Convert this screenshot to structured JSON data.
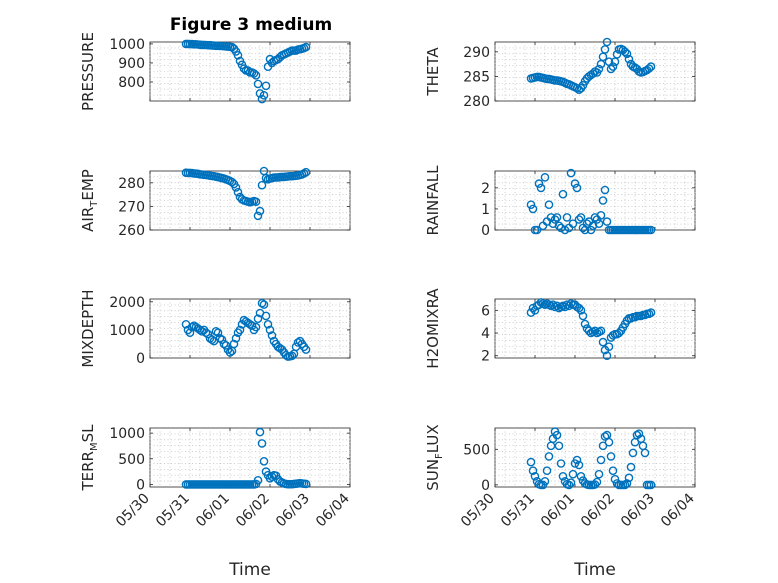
{
  "figure": {
    "title": "Figure 3 medium"
  },
  "colors": {
    "marker": "#0072BD",
    "axis": "#262626",
    "grid": "#b0b0b0"
  },
  "chart_data": [
    {
      "id": "pressure",
      "type": "scatter",
      "ylabel": "PRESSURE",
      "ylabel_parts": [
        "PRESSURE"
      ],
      "ylabel_sub": "",
      "xlim": [
        0,
        5
      ],
      "ylim": [
        700,
        1010
      ],
      "yticks": [
        800,
        900,
        1000
      ],
      "ytick_labels": [
        "800",
        "900",
        "1000"
      ],
      "x": [
        0.9,
        0.95,
        1.0,
        1.05,
        1.1,
        1.15,
        1.2,
        1.25,
        1.3,
        1.35,
        1.4,
        1.45,
        1.5,
        1.55,
        1.6,
        1.65,
        1.7,
        1.75,
        1.8,
        1.85,
        1.9,
        1.95,
        2.0,
        2.05,
        2.1,
        2.15,
        2.2,
        2.25,
        2.3,
        2.35,
        2.4,
        2.45,
        2.5,
        2.55,
        2.6,
        2.65,
        2.7,
        2.75,
        2.8,
        2.85,
        2.9,
        2.95,
        3.0,
        3.05,
        3.1,
        3.15,
        3.2,
        3.25,
        3.3,
        3.35,
        3.4,
        3.45,
        3.5,
        3.55,
        3.6,
        3.65,
        3.7,
        3.75,
        3.8,
        3.85,
        3.9
      ],
      "y": [
        1000,
        1000,
        999,
        999,
        998,
        998,
        997,
        996,
        995,
        995,
        994,
        993,
        993,
        992,
        991,
        990,
        990,
        989,
        989,
        988,
        987,
        986,
        985,
        983,
        975,
        960,
        940,
        910,
        890,
        870,
        860,
        860,
        850,
        850,
        845,
        835,
        790,
        740,
        710,
        730,
        780,
        880,
        920,
        900,
        910,
        915,
        920,
        930,
        940,
        945,
        950,
        955,
        960,
        965,
        965,
        965,
        970,
        972,
        975,
        978,
        983
      ]
    },
    {
      "id": "theta",
      "type": "scatter",
      "ylabel": "THETA",
      "ylabel_parts": [
        "THETA"
      ],
      "ylabel_sub": "",
      "xlim": [
        0,
        5
      ],
      "ylim": [
        280,
        292
      ],
      "yticks": [
        280,
        285,
        290
      ],
      "ytick_labels": [
        "280",
        "285",
        "290"
      ],
      "x": [
        0.9,
        0.95,
        1.0,
        1.05,
        1.1,
        1.15,
        1.2,
        1.25,
        1.3,
        1.35,
        1.4,
        1.45,
        1.5,
        1.55,
        1.6,
        1.65,
        1.7,
        1.75,
        1.8,
        1.85,
        1.9,
        1.95,
        2.0,
        2.05,
        2.1,
        2.15,
        2.2,
        2.25,
        2.3,
        2.35,
        2.4,
        2.45,
        2.5,
        2.55,
        2.6,
        2.65,
        2.7,
        2.75,
        2.8,
        2.85,
        2.9,
        2.95,
        3.0,
        3.05,
        3.1,
        3.15,
        3.2,
        3.25,
        3.3,
        3.35,
        3.4,
        3.45,
        3.5,
        3.55,
        3.6,
        3.65,
        3.7,
        3.75,
        3.8,
        3.85,
        3.9
      ],
      "y": [
        284.6,
        284.7,
        284.8,
        284.9,
        284.9,
        284.8,
        284.7,
        284.6,
        284.5,
        284.5,
        284.4,
        284.3,
        284.2,
        284.2,
        284.1,
        284.0,
        283.9,
        283.7,
        283.5,
        283.4,
        283.2,
        283.0,
        282.8,
        282.6,
        282.3,
        282.6,
        283.2,
        284.0,
        284.6,
        285.0,
        285.3,
        285.6,
        286.0,
        285.8,
        286.5,
        287.5,
        289.0,
        290.5,
        292.0,
        288.0,
        286.5,
        287.0,
        288.0,
        289.5,
        290.5,
        290.6,
        290.4,
        290.0,
        289.6,
        288.5,
        287.5,
        287.0,
        286.8,
        286.5,
        286.0,
        285.8,
        285.9,
        286.1,
        286.3,
        286.6,
        287.0
      ]
    },
    {
      "id": "air_temp",
      "type": "scatter",
      "ylabel": "AIR_TEMP",
      "ylabel_parts": [
        "AIR",
        "T",
        "EMP"
      ],
      "ylabel_sub": "T",
      "xlim": [
        0,
        5
      ],
      "ylim": [
        260,
        285
      ],
      "yticks": [
        260,
        270,
        280
      ],
      "ytick_labels": [
        "260",
        "270",
        "280"
      ],
      "x": [
        0.9,
        0.95,
        1.0,
        1.05,
        1.1,
        1.15,
        1.2,
        1.25,
        1.3,
        1.35,
        1.4,
        1.45,
        1.5,
        1.55,
        1.6,
        1.65,
        1.7,
        1.75,
        1.8,
        1.85,
        1.9,
        1.95,
        2.0,
        2.05,
        2.1,
        2.15,
        2.2,
        2.25,
        2.3,
        2.35,
        2.4,
        2.45,
        2.5,
        2.55,
        2.6,
        2.65,
        2.7,
        2.75,
        2.8,
        2.85,
        2.9,
        2.95,
        3.0,
        3.05,
        3.1,
        3.15,
        3.2,
        3.25,
        3.3,
        3.35,
        3.4,
        3.45,
        3.5,
        3.55,
        3.6,
        3.65,
        3.7,
        3.75,
        3.8,
        3.85,
        3.9
      ],
      "y": [
        284.3,
        284.2,
        284.2,
        284.1,
        284.0,
        283.9,
        283.8,
        283.6,
        283.5,
        283.4,
        283.3,
        283.2,
        283.0,
        282.9,
        282.8,
        282.6,
        282.4,
        282.2,
        282.0,
        281.8,
        281.5,
        281.2,
        280.8,
        280.3,
        279.5,
        278.0,
        276.0,
        274.0,
        273.0,
        272.5,
        272.3,
        272.0,
        271.8,
        272.0,
        272.3,
        272.0,
        266.0,
        268.0,
        279.0,
        285.0,
        282.0,
        281.5,
        281.8,
        282.0,
        282.2,
        282.3,
        282.3,
        282.4,
        282.5,
        282.5,
        282.6,
        282.7,
        282.8,
        282.8,
        282.9,
        283.0,
        283.1,
        283.3,
        283.5,
        284.0,
        284.5
      ]
    },
    {
      "id": "rainfall",
      "type": "scatter",
      "ylabel": "RAINFALL",
      "ylabel_parts": [
        "RAINFALL"
      ],
      "ylabel_sub": "",
      "xlim": [
        0,
        5
      ],
      "ylim": [
        0,
        2.8
      ],
      "yticks": [
        0,
        1,
        2
      ],
      "ytick_labels": [
        "0",
        "1",
        "2"
      ],
      "x": [
        0.9,
        0.95,
        1.0,
        1.05,
        1.1,
        1.15,
        1.2,
        1.25,
        1.3,
        1.35,
        1.4,
        1.45,
        1.5,
        1.55,
        1.6,
        1.65,
        1.7,
        1.75,
        1.8,
        1.85,
        1.9,
        1.95,
        2.0,
        2.05,
        2.1,
        2.15,
        2.2,
        2.25,
        2.3,
        2.35,
        2.4,
        2.45,
        2.5,
        2.55,
        2.6,
        2.65,
        2.7,
        2.75,
        2.8,
        2.85,
        2.9,
        2.95,
        3.0,
        3.05,
        3.1,
        3.15,
        3.2,
        3.25,
        3.3,
        3.35,
        3.4,
        3.45,
        3.5,
        3.55,
        3.6,
        3.65,
        3.7,
        3.75,
        3.8,
        3.85,
        3.9
      ],
      "y": [
        1.2,
        1.0,
        0.0,
        0.0,
        2.2,
        2.0,
        0.2,
        2.5,
        0.4,
        1.2,
        0.6,
        0.3,
        0.5,
        0.6,
        0.2,
        0.1,
        1.7,
        0.0,
        0.6,
        0.1,
        2.7,
        0.3,
        2.2,
        2.0,
        0.5,
        0.6,
        0.1,
        0.0,
        0.3,
        0.4,
        0.0,
        0.2,
        0.6,
        0.5,
        0.3,
        0.7,
        1.4,
        1.9,
        0.4,
        0.0,
        0.0,
        0.0,
        0.0,
        0.0,
        0.0,
        0.0,
        0.0,
        0.0,
        0.0,
        0.0,
        0.0,
        0.0,
        0.0,
        0.0,
        0.0,
        0.0,
        0.0,
        0.0,
        0.0,
        0.0,
        0.0
      ]
    },
    {
      "id": "mixdepth",
      "type": "scatter",
      "ylabel": "MIXDEPTH",
      "ylabel_parts": [
        "MIXDEPTH"
      ],
      "ylabel_sub": "",
      "xlim": [
        0,
        5
      ],
      "ylim": [
        0,
        2100
      ],
      "yticks": [
        0,
        1000,
        2000
      ],
      "ytick_labels": [
        "0",
        "1000",
        "2000"
      ],
      "x": [
        0.9,
        0.95,
        1.0,
        1.05,
        1.1,
        1.15,
        1.2,
        1.25,
        1.3,
        1.35,
        1.4,
        1.45,
        1.5,
        1.55,
        1.6,
        1.65,
        1.7,
        1.75,
        1.8,
        1.85,
        1.9,
        1.95,
        2.0,
        2.05,
        2.1,
        2.15,
        2.2,
        2.25,
        2.3,
        2.35,
        2.4,
        2.45,
        2.5,
        2.55,
        2.6,
        2.65,
        2.7,
        2.75,
        2.8,
        2.85,
        2.9,
        2.95,
        3.0,
        3.05,
        3.1,
        3.15,
        3.2,
        3.25,
        3.3,
        3.35,
        3.4,
        3.45,
        3.5,
        3.55,
        3.6,
        3.65,
        3.7,
        3.75,
        3.8,
        3.85,
        3.9
      ],
      "y": [
        1200,
        1000,
        900,
        1100,
        1150,
        1100,
        1050,
        1000,
        950,
        1000,
        900,
        850,
        700,
        650,
        600,
        950,
        900,
        700,
        650,
        500,
        450,
        300,
        200,
        250,
        500,
        700,
        900,
        1000,
        1200,
        1350,
        1300,
        1250,
        1200,
        1150,
        1000,
        1100,
        1400,
        1600,
        1950,
        1900,
        1500,
        1200,
        1000,
        800,
        600,
        500,
        400,
        350,
        300,
        200,
        100,
        50,
        60,
        80,
        150,
        400,
        550,
        600,
        500,
        400,
        300
      ]
    },
    {
      "id": "h2omixra",
      "type": "scatter",
      "ylabel": "H2OMIXRA",
      "ylabel_parts": [
        "H2OMIXRA"
      ],
      "ylabel_sub": "",
      "xlim": [
        0,
        5
      ],
      "ylim": [
        1.8,
        7
      ],
      "yticks": [
        2,
        4,
        6
      ],
      "ytick_labels": [
        "2",
        "4",
        "6"
      ],
      "x": [
        0.9,
        0.95,
        1.0,
        1.05,
        1.1,
        1.15,
        1.2,
        1.25,
        1.3,
        1.35,
        1.4,
        1.45,
        1.5,
        1.55,
        1.6,
        1.65,
        1.7,
        1.75,
        1.8,
        1.85,
        1.9,
        1.95,
        2.0,
        2.05,
        2.1,
        2.15,
        2.2,
        2.25,
        2.3,
        2.35,
        2.4,
        2.45,
        2.5,
        2.55,
        2.6,
        2.65,
        2.7,
        2.75,
        2.8,
        2.85,
        2.9,
        2.95,
        3.0,
        3.05,
        3.1,
        3.15,
        3.2,
        3.25,
        3.3,
        3.35,
        3.4,
        3.45,
        3.5,
        3.55,
        3.6,
        3.65,
        3.7,
        3.75,
        3.8,
        3.85,
        3.9
      ],
      "y": [
        5.8,
        6.2,
        6.0,
        6.4,
        6.5,
        6.7,
        6.6,
        6.5,
        6.6,
        6.5,
        6.4,
        6.5,
        6.3,
        6.4,
        6.2,
        6.3,
        6.4,
        6.3,
        6.5,
        6.4,
        6.6,
        6.5,
        6.5,
        6.3,
        6.2,
        6.0,
        5.5,
        4.8,
        4.4,
        4.2,
        4.0,
        4.1,
        4.2,
        4.0,
        4.1,
        4.2,
        3.2,
        2.5,
        2.0,
        2.8,
        3.6,
        3.8,
        3.9,
        3.9,
        4.0,
        4.2,
        4.5,
        4.8,
        5.1,
        5.3,
        5.3,
        5.4,
        5.4,
        5.5,
        5.5,
        5.5,
        5.6,
        5.6,
        5.7,
        5.7,
        5.8
      ]
    },
    {
      "id": "terr_msl",
      "type": "scatter",
      "ylabel": "TERR_MSL",
      "ylabel_parts": [
        "TERR",
        "M",
        "SL"
      ],
      "ylabel_sub": "M",
      "xlim": [
        0,
        5
      ],
      "ylim": [
        -50,
        1100
      ],
      "yticks": [
        0,
        500,
        1000
      ],
      "ytick_labels": [
        "0",
        "500",
        "1000"
      ],
      "x": [
        0.9,
        0.95,
        1.0,
        1.05,
        1.1,
        1.15,
        1.2,
        1.25,
        1.3,
        1.35,
        1.4,
        1.45,
        1.5,
        1.55,
        1.6,
        1.65,
        1.7,
        1.75,
        1.8,
        1.85,
        1.9,
        1.95,
        2.0,
        2.05,
        2.1,
        2.15,
        2.2,
        2.25,
        2.3,
        2.35,
        2.4,
        2.45,
        2.5,
        2.55,
        2.6,
        2.65,
        2.7,
        2.75,
        2.8,
        2.85,
        2.9,
        2.95,
        3.0,
        3.05,
        3.1,
        3.15,
        3.2,
        3.25,
        3.3,
        3.35,
        3.4,
        3.45,
        3.5,
        3.55,
        3.6,
        3.65,
        3.7,
        3.75,
        3.8,
        3.85,
        3.9
      ],
      "y": [
        0,
        0,
        0,
        0,
        0,
        0,
        0,
        0,
        0,
        0,
        0,
        0,
        0,
        0,
        0,
        0,
        0,
        0,
        0,
        0,
        0,
        0,
        0,
        0,
        0,
        0,
        0,
        0,
        0,
        0,
        0,
        0,
        0,
        0,
        0,
        10,
        80,
        1020,
        800,
        450,
        250,
        180,
        120,
        150,
        180,
        170,
        100,
        60,
        40,
        20,
        10,
        5,
        5,
        5,
        10,
        15,
        20,
        25,
        20,
        15,
        10
      ]
    },
    {
      "id": "sun_flux",
      "type": "scatter",
      "ylabel": "SUN_FLUX",
      "ylabel_parts": [
        "SUN",
        "F",
        "LUX"
      ],
      "ylabel_sub": "F",
      "xlim": [
        0,
        5
      ],
      "ylim": [
        -30,
        800
      ],
      "yticks": [
        0,
        500
      ],
      "ytick_labels": [
        "0",
        "500"
      ],
      "x": [
        0.9,
        0.95,
        1.0,
        1.05,
        1.1,
        1.15,
        1.2,
        1.25,
        1.3,
        1.35,
        1.4,
        1.45,
        1.5,
        1.55,
        1.6,
        1.65,
        1.7,
        1.75,
        1.8,
        1.85,
        1.9,
        1.95,
        2.0,
        2.05,
        2.1,
        2.15,
        2.2,
        2.25,
        2.3,
        2.35,
        2.4,
        2.45,
        2.5,
        2.55,
        2.6,
        2.65,
        2.7,
        2.75,
        2.8,
        2.85,
        2.9,
        2.95,
        3.0,
        3.05,
        3.1,
        3.15,
        3.2,
        3.25,
        3.3,
        3.35,
        3.4,
        3.45,
        3.5,
        3.55,
        3.6,
        3.65,
        3.7,
        3.75,
        3.8,
        3.85,
        3.9
      ],
      "y": [
        320,
        200,
        120,
        50,
        10,
        0,
        0,
        50,
        200,
        400,
        550,
        650,
        750,
        700,
        550,
        300,
        120,
        50,
        10,
        0,
        30,
        150,
        300,
        350,
        280,
        120,
        60,
        20,
        5,
        0,
        0,
        0,
        5,
        40,
        150,
        350,
        550,
        680,
        700,
        600,
        400,
        200,
        80,
        20,
        0,
        0,
        0,
        0,
        20,
        100,
        250,
        450,
        600,
        700,
        720,
        650,
        550,
        450,
        0,
        0,
        0
      ]
    }
  ],
  "x_axis": {
    "label": "Time",
    "ticks": [
      0,
      1,
      2,
      3,
      4,
      5
    ],
    "tick_labels": [
      "05/30",
      "05/31",
      "06/01",
      "06/02",
      "06/03",
      "06/04"
    ]
  }
}
